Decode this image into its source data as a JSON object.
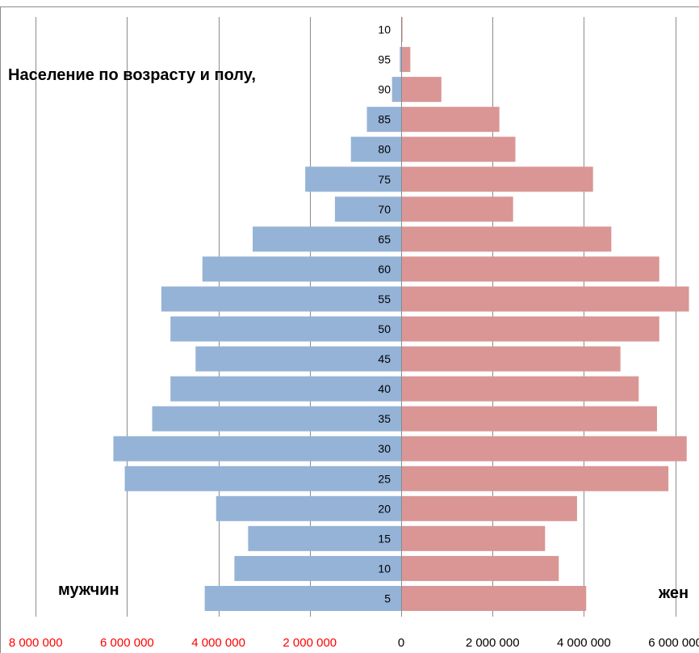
{
  "chart_data": {
    "type": "bar",
    "orientation": "horizontal",
    "title": "Население по возрасту и полу,",
    "left_label": "мужчин",
    "right_label": "жен",
    "categories": [
      "5",
      "10",
      "15",
      "20",
      "25",
      "30",
      "35",
      "40",
      "45",
      "50",
      "55",
      "60",
      "65",
      "70",
      "75",
      "80",
      "85",
      "90",
      "95",
      "10"
    ],
    "series": [
      {
        "name": "мужчин",
        "side": "left",
        "values": [
          4300000,
          3650000,
          3350000,
          4050000,
          6050000,
          6300000,
          5450000,
          5050000,
          4500000,
          5050000,
          5250000,
          4350000,
          3250000,
          1450000,
          2100000,
          1100000,
          750000,
          200000,
          30000,
          0
        ]
      },
      {
        "name": "жен",
        "side": "right",
        "values": [
          4050000,
          3450000,
          3150000,
          3850000,
          5850000,
          6250000,
          5600000,
          5200000,
          4800000,
          5650000,
          6300000,
          5650000,
          4600000,
          2450000,
          4200000,
          2500000,
          2150000,
          880000,
          200000,
          30000
        ]
      }
    ],
    "xlim": [
      -8000000,
      6000000
    ],
    "x_tick_values": [
      -8000000,
      -6000000,
      -4000000,
      -2000000,
      0,
      2000000,
      4000000,
      6000000
    ],
    "x_tick_labels": [
      "8 000 000",
      "6 000 000",
      "4 000 000",
      "2 000 000",
      "0",
      "2 000 000",
      "4 000 000",
      "6 000 000"
    ],
    "grid": true,
    "colors": {
      "male": "#95B3D7",
      "female": "#D99694",
      "negative_ticks": "#FF0000",
      "positive_ticks": "#000000",
      "grid": "#8C8C8C"
    }
  }
}
